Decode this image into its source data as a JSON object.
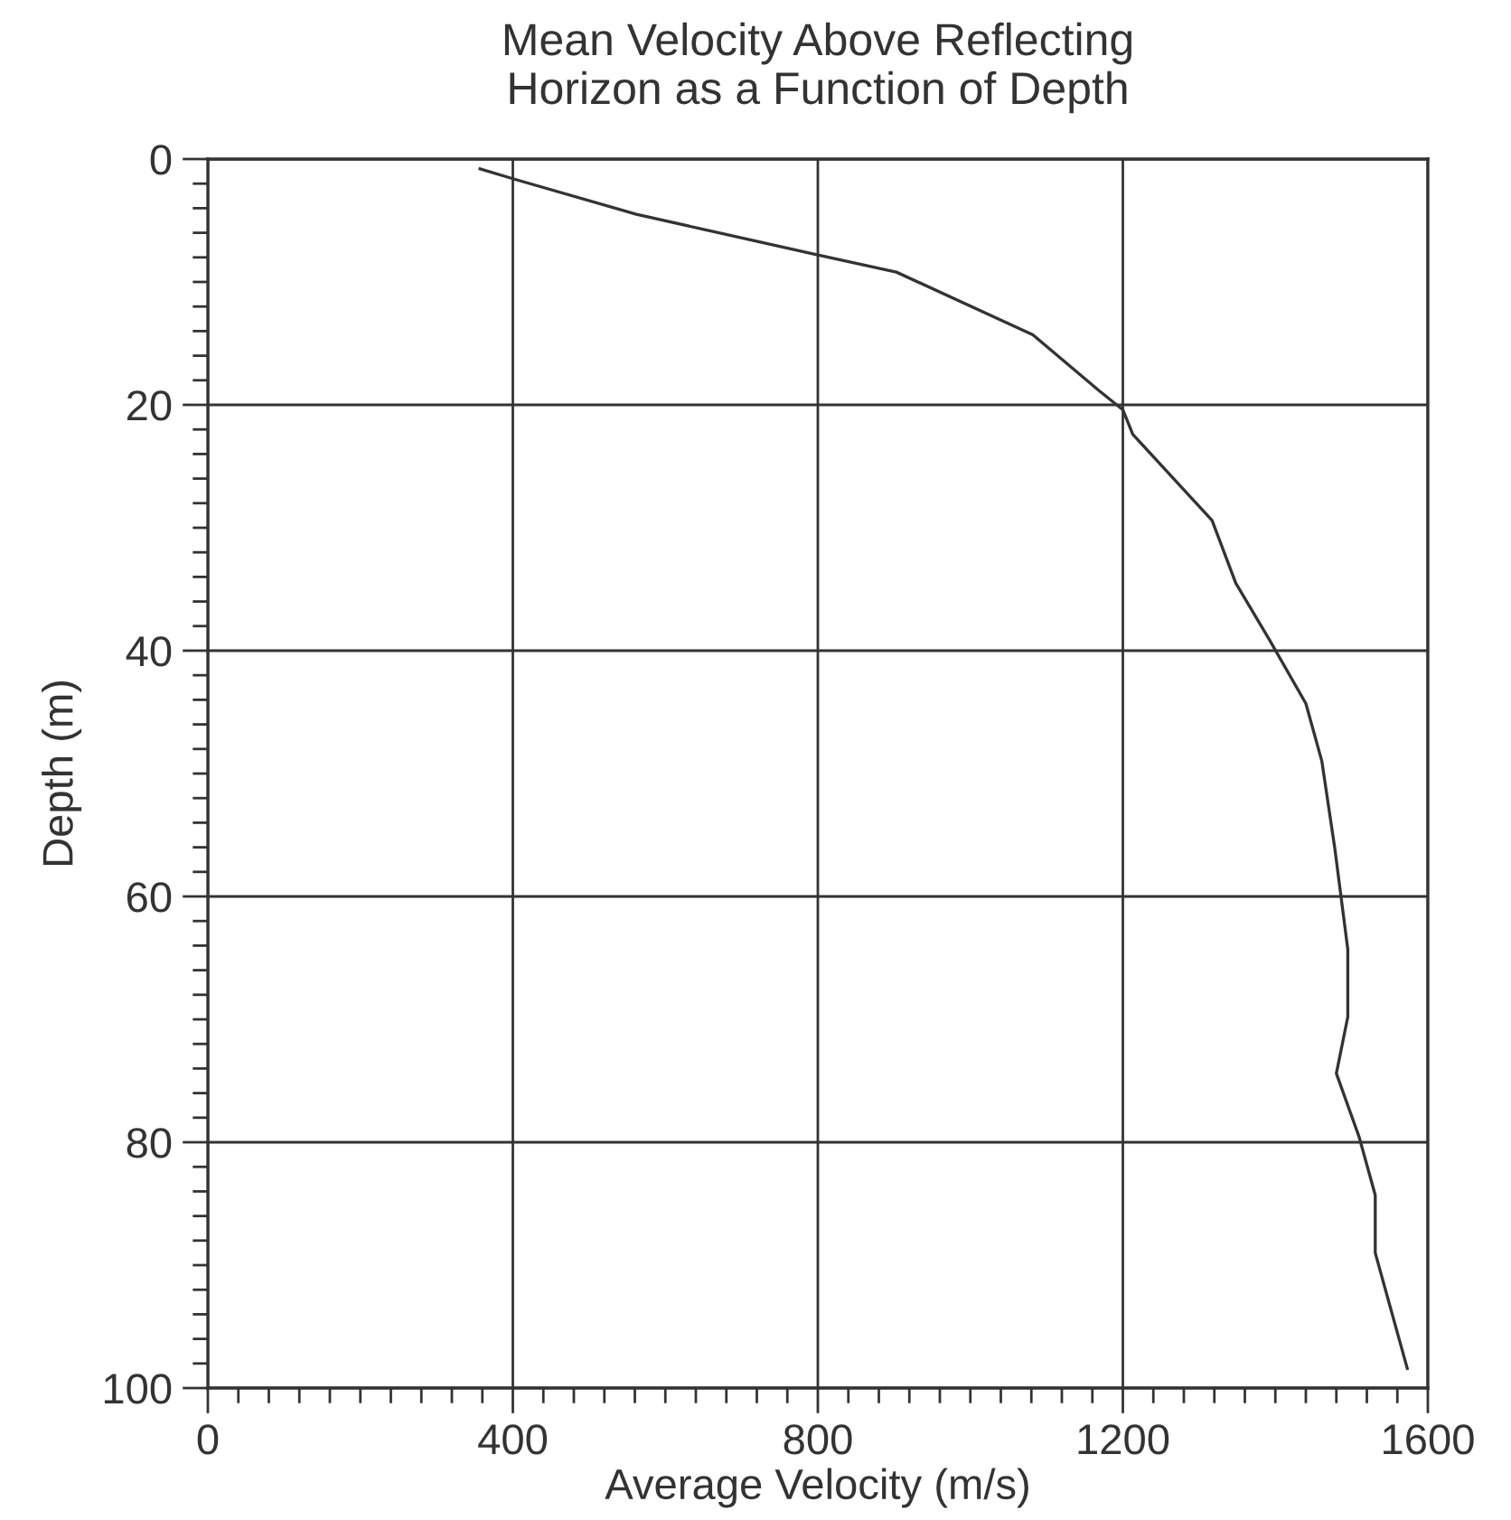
{
  "chart_data": {
    "type": "line",
    "title": "Mean Velocity Above Reflecting\nHorizon as a Function of Depth",
    "xlabel": "Average Velocity (m/s)",
    "ylabel": "Depth (m)",
    "x": [
      357,
      400,
      562,
      800,
      903,
      1082,
      1168,
      1200,
      1213,
      1317,
      1348,
      1393,
      1440,
      1461,
      1478,
      1495,
      1495,
      1480,
      1510,
      1531,
      1531,
      1573
    ],
    "series": [
      {
        "color": "#333333",
        "values": [
          0.8,
          1.6,
          4.5,
          7.8,
          9.2,
          14.3,
          18.8,
          20.4,
          22.4,
          29.4,
          34.5,
          39.2,
          44.3,
          49.0,
          56.1,
          64.3,
          69.8,
          74.4,
          79.6,
          84.3,
          89.0,
          98.4
        ]
      }
    ],
    "xlim": [
      0,
      1600
    ],
    "xticks": [
      0,
      400,
      800,
      1200,
      1600
    ],
    "ylim": [
      100,
      0
    ],
    "yticks": [
      0,
      20,
      40,
      60,
      80,
      100
    ],
    "grid": true,
    "legend": false,
    "marker": "none",
    "line_style": "solid"
  }
}
